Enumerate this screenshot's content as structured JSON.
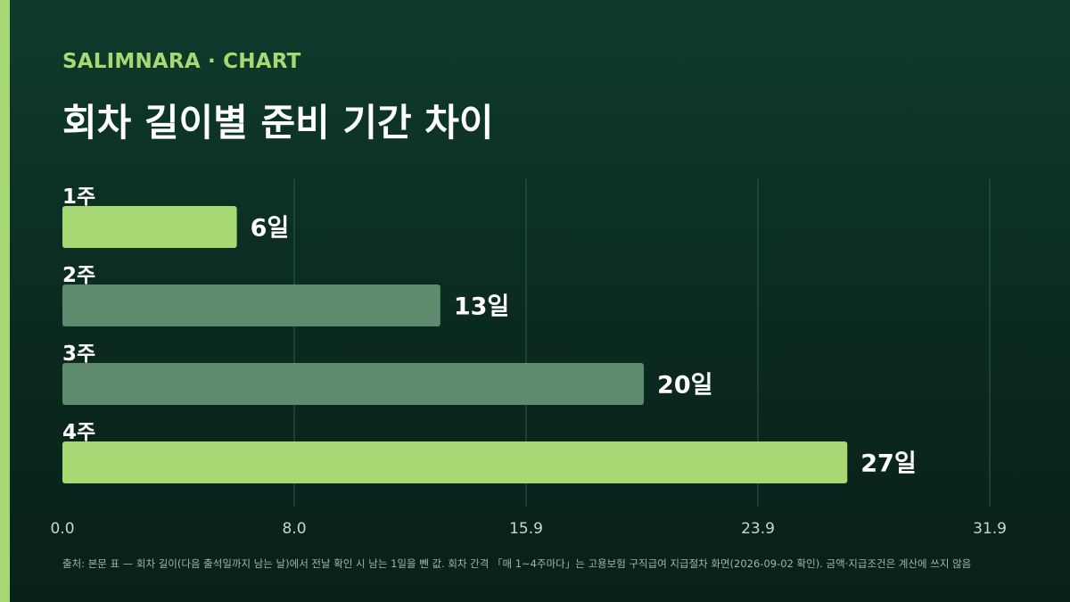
{
  "header": {
    "brand": "SALIMNARA · CHART",
    "title": "회차 길이별 준비 기간 차이"
  },
  "chart_data": {
    "type": "bar",
    "orientation": "horizontal",
    "title": "회차 길이별 준비 기간 차이",
    "categories": [
      "1주",
      "2주",
      "3주",
      "4주"
    ],
    "values": [
      6,
      13,
      20,
      27
    ],
    "value_labels": [
      "6일",
      "13일",
      "20일",
      "27일"
    ],
    "highlighted": [
      true,
      false,
      false,
      true
    ],
    "x_ticks": [
      "0.0",
      "8.0",
      "15.9",
      "23.9",
      "31.9"
    ],
    "x_tick_values": [
      0,
      7.975,
      15.95,
      23.925,
      31.9
    ],
    "xlim": [
      0,
      31.9
    ],
    "grid": true,
    "colors": {
      "highlight": "#a8d873",
      "normal": "#5e8b6e",
      "grid": "#2f5a47",
      "category_label": "#ffffff",
      "value_label": "#ffffff",
      "tick_label": "#c9d6cf"
    }
  },
  "footnote": "출처: 본문 표 — 회차 길이(다음 출석일까지 남는 날)에서 전날 확인 시 남는 1일을 뺀 값. 회차 간격 「매 1~4주마다」는 고용보험 구직급여 지급절차 화면(2026-09-02 확인). 금액·지급조건은 계산에 쓰지 않음"
}
